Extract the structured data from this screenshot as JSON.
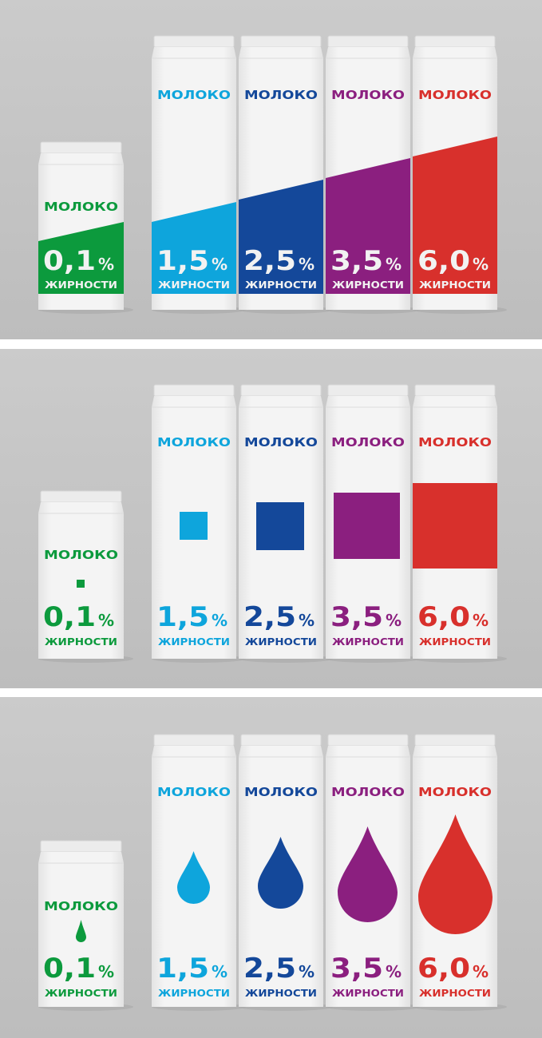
{
  "colors": {
    "background": "#c5c5c5",
    "carton": "#f1f1f1",
    "green": "#0c9a3d",
    "cyan": "#0ea5dc",
    "blue": "#14489a",
    "purple": "#8b1f7f",
    "red": "#d8302c"
  },
  "products": [
    {
      "name": "МОЛОКО",
      "fat": "0,1",
      "percent_sign": "%",
      "label": "ЖИРНОСТИ",
      "color": "green",
      "size": "small"
    },
    {
      "name": "МОЛОКО",
      "fat": "1,5",
      "percent_sign": "%",
      "label": "ЖИРНОСТИ",
      "color": "cyan",
      "size": "tall"
    },
    {
      "name": "МОЛОКО",
      "fat": "2,5",
      "percent_sign": "%",
      "label": "ЖИРНОСТИ",
      "color": "blue",
      "size": "tall"
    },
    {
      "name": "МОЛОКО",
      "fat": "3,5",
      "percent_sign": "%",
      "label": "ЖИРНОСТИ",
      "color": "purple",
      "size": "tall"
    },
    {
      "name": "МОЛОКО",
      "fat": "6,0",
      "percent_sign": "%",
      "label": "ЖИРНОСТИ",
      "color": "red",
      "size": "tall"
    }
  ],
  "panels": [
    {
      "variant": "diagonal-band"
    },
    {
      "variant": "square"
    },
    {
      "variant": "drop"
    }
  ]
}
